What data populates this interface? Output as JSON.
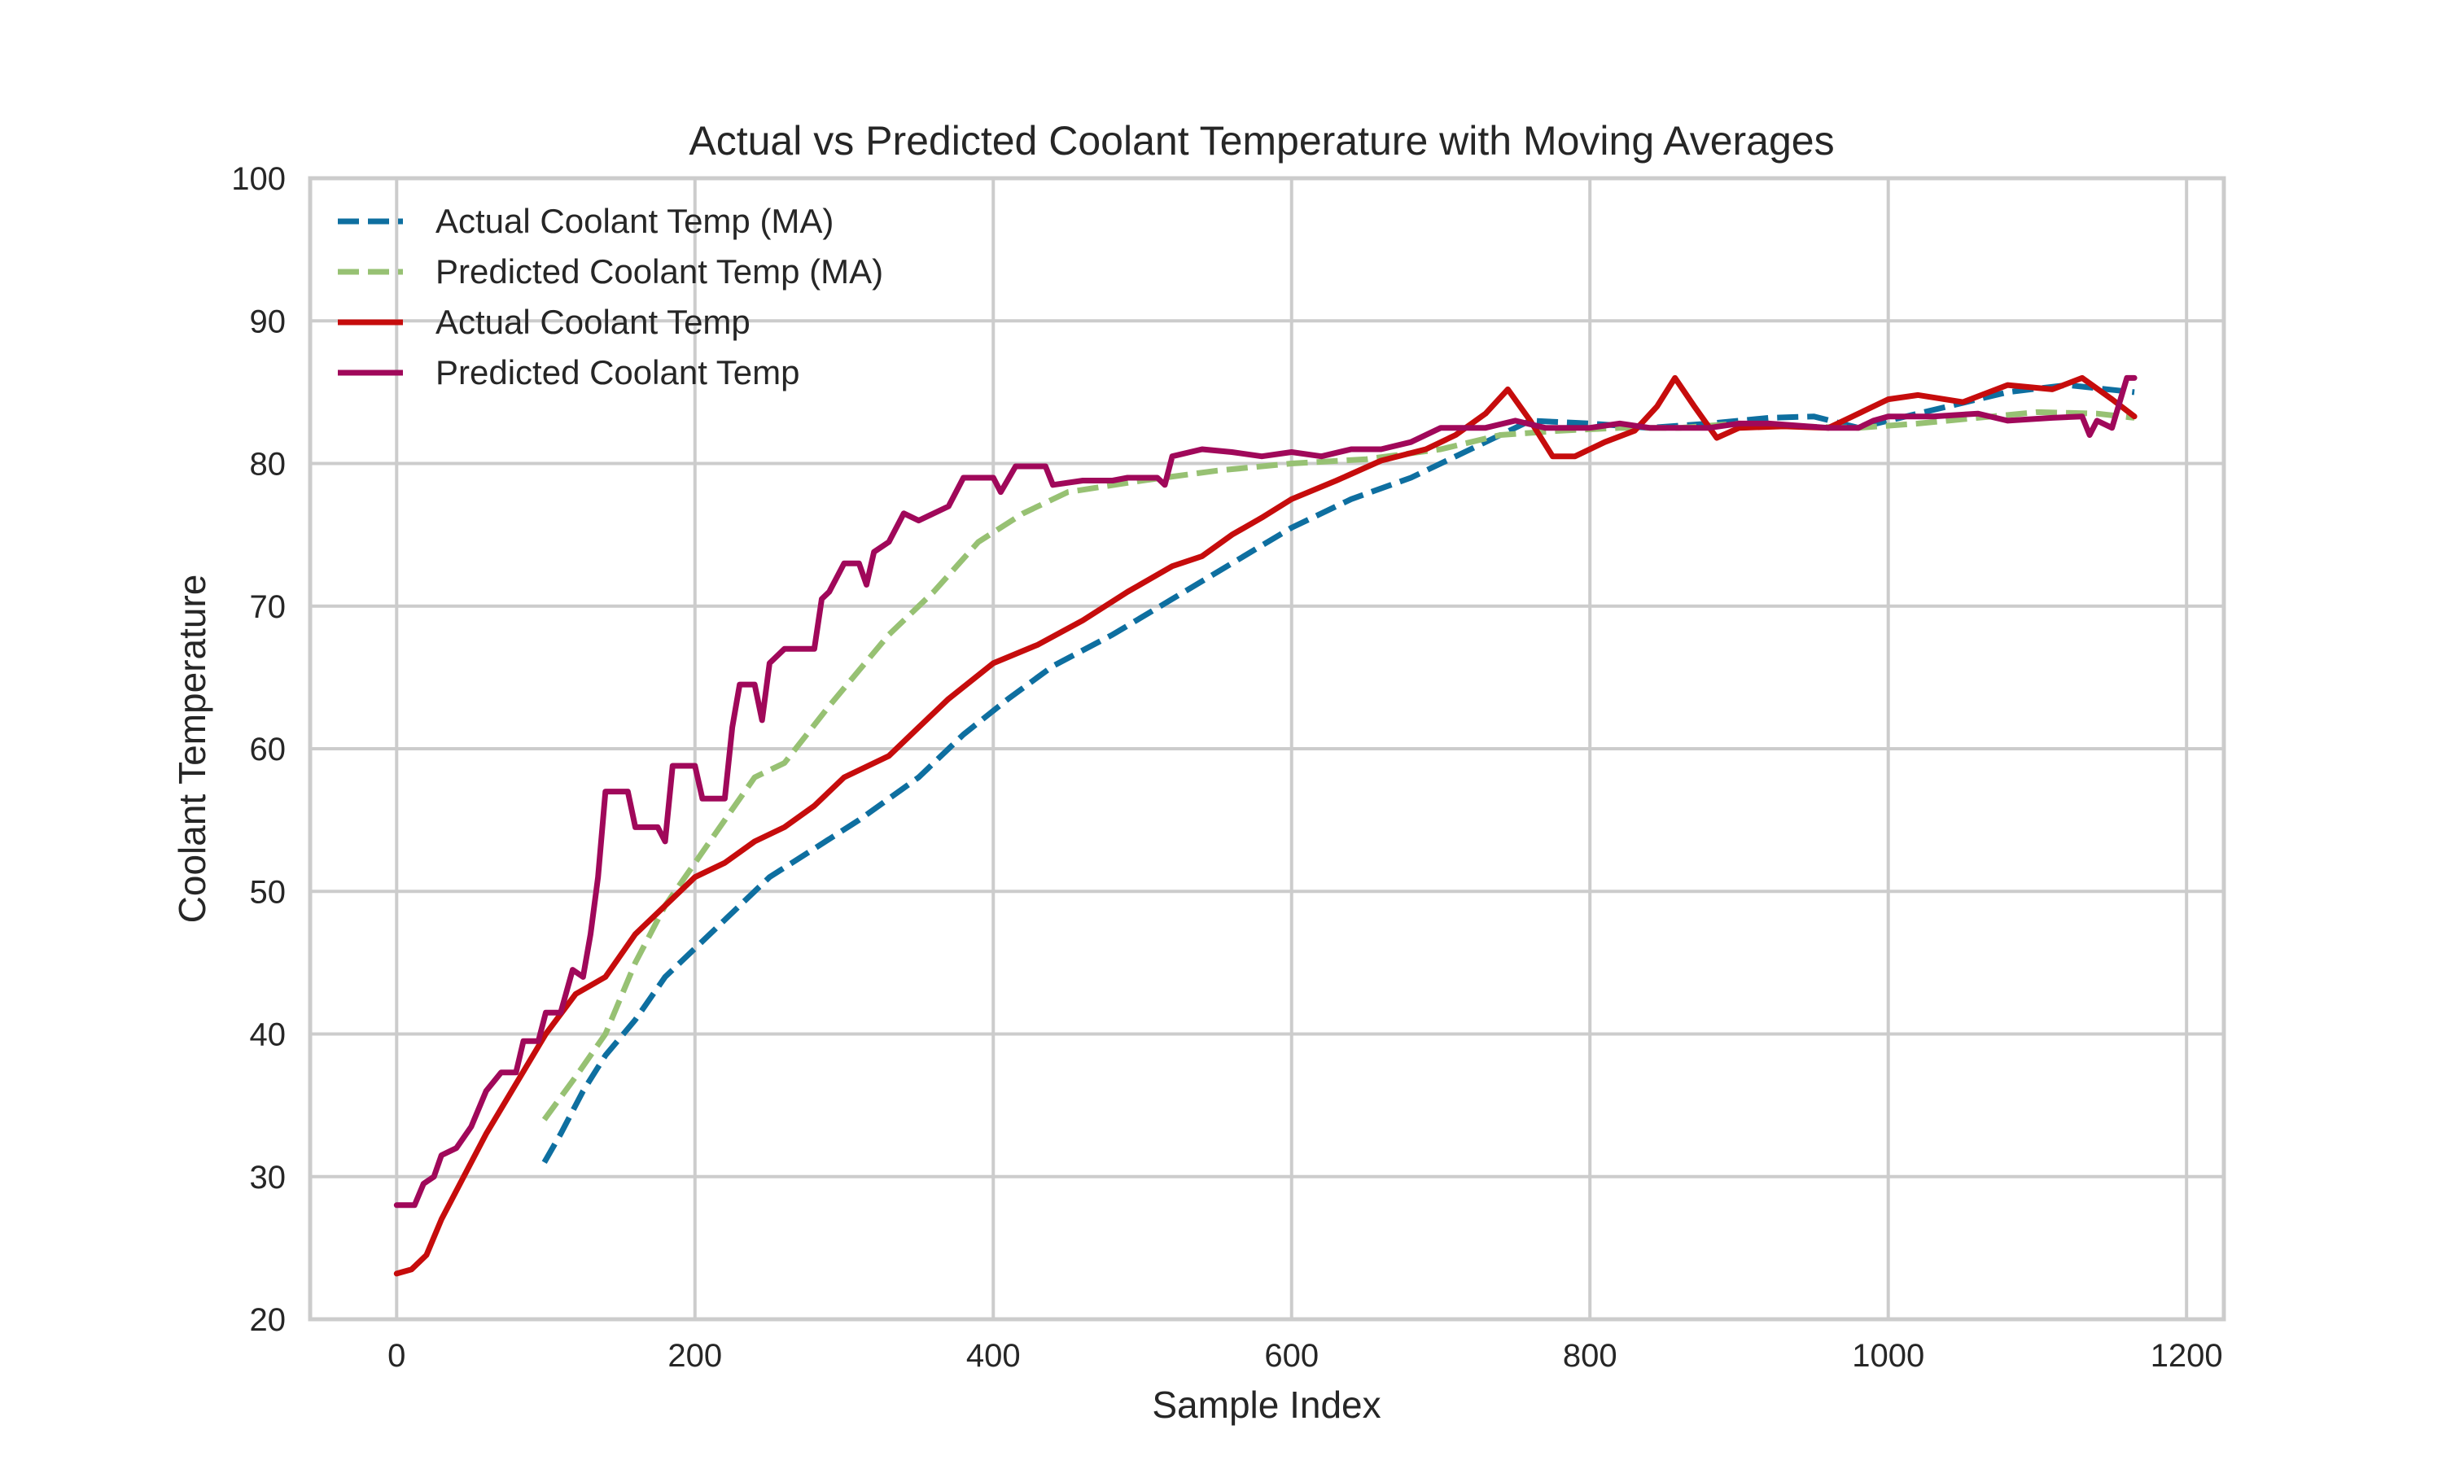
{
  "chart_data": {
    "type": "line",
    "title": "Actual vs Predicted Coolant Temperature with Moving Averages",
    "xlabel": "Sample Index",
    "ylabel": "Coolant Temperature",
    "xlim": [
      -58,
      1225
    ],
    "ylim": [
      20,
      100
    ],
    "xticks": [
      0,
      200,
      400,
      600,
      800,
      1000,
      1200
    ],
    "yticks": [
      20,
      30,
      40,
      50,
      60,
      70,
      80,
      90,
      100
    ],
    "grid": true,
    "legend_position": "top-left",
    "series": [
      {
        "name": "Actual Coolant Temp (MA)",
        "style": "dashed",
        "color": "#0e6fa0",
        "points": [
          [
            99,
            31
          ],
          [
            110,
            33
          ],
          [
            125,
            36
          ],
          [
            140,
            38.5
          ],
          [
            160,
            41
          ],
          [
            180,
            44
          ],
          [
            200,
            46
          ],
          [
            225,
            48.5
          ],
          [
            250,
            51
          ],
          [
            280,
            53
          ],
          [
            310,
            55
          ],
          [
            350,
            58
          ],
          [
            380,
            61
          ],
          [
            410,
            63.5
          ],
          [
            440,
            65.8
          ],
          [
            480,
            68
          ],
          [
            520,
            70.5
          ],
          [
            560,
            73
          ],
          [
            600,
            75.5
          ],
          [
            640,
            77.5
          ],
          [
            680,
            79
          ],
          [
            720,
            81
          ],
          [
            760,
            83
          ],
          [
            800,
            82.8
          ],
          [
            840,
            82.5
          ],
          [
            880,
            82.8
          ],
          [
            920,
            83.2
          ],
          [
            950,
            83.3
          ],
          [
            980,
            82.5
          ],
          [
            1000,
            83
          ],
          [
            1040,
            84
          ],
          [
            1080,
            85
          ],
          [
            1120,
            85.5
          ],
          [
            1165,
            85
          ]
        ]
      },
      {
        "name": "Predicted Coolant Temp (MA)",
        "style": "dashed",
        "color": "#97c173",
        "points": [
          [
            99,
            34
          ],
          [
            120,
            37
          ],
          [
            140,
            40
          ],
          [
            160,
            45
          ],
          [
            180,
            49
          ],
          [
            200,
            52
          ],
          [
            220,
            55
          ],
          [
            240,
            58
          ],
          [
            260,
            59
          ],
          [
            290,
            63
          ],
          [
            330,
            68
          ],
          [
            360,
            71
          ],
          [
            390,
            74.5
          ],
          [
            420,
            76.5
          ],
          [
            450,
            78
          ],
          [
            500,
            78.8
          ],
          [
            550,
            79.5
          ],
          [
            600,
            80
          ],
          [
            650,
            80.3
          ],
          [
            700,
            81
          ],
          [
            740,
            82
          ],
          [
            780,
            82.3
          ],
          [
            820,
            82.5
          ],
          [
            860,
            82.5
          ],
          [
            900,
            82.8
          ],
          [
            940,
            82.6
          ],
          [
            980,
            82.5
          ],
          [
            1020,
            82.8
          ],
          [
            1060,
            83.2
          ],
          [
            1100,
            83.6
          ],
          [
            1140,
            83.5
          ],
          [
            1165,
            83.2
          ]
        ]
      },
      {
        "name": "Actual Coolant Temp",
        "style": "solid",
        "color": "#c60c0c",
        "points": [
          [
            0,
            23.2
          ],
          [
            10,
            23.5
          ],
          [
            20,
            24.5
          ],
          [
            30,
            27
          ],
          [
            45,
            30
          ],
          [
            60,
            33
          ],
          [
            80,
            36.5
          ],
          [
            100,
            40
          ],
          [
            120,
            42.8
          ],
          [
            140,
            44
          ],
          [
            160,
            47
          ],
          [
            180,
            49
          ],
          [
            200,
            51
          ],
          [
            220,
            52
          ],
          [
            240,
            53.5
          ],
          [
            260,
            54.5
          ],
          [
            280,
            56
          ],
          [
            300,
            58
          ],
          [
            330,
            59.5
          ],
          [
            350,
            61.5
          ],
          [
            370,
            63.5
          ],
          [
            400,
            66
          ],
          [
            430,
            67.3
          ],
          [
            460,
            69
          ],
          [
            490,
            71
          ],
          [
            520,
            72.8
          ],
          [
            540,
            73.5
          ],
          [
            560,
            75
          ],
          [
            580,
            76.2
          ],
          [
            600,
            77.5
          ],
          [
            630,
            78.8
          ],
          [
            660,
            80.2
          ],
          [
            690,
            81
          ],
          [
            710,
            82
          ],
          [
            730,
            83.5
          ],
          [
            745,
            85.2
          ],
          [
            760,
            83
          ],
          [
            775,
            80.5
          ],
          [
            790,
            80.5
          ],
          [
            810,
            81.5
          ],
          [
            830,
            82.3
          ],
          [
            845,
            84
          ],
          [
            857,
            86
          ],
          [
            870,
            84
          ],
          [
            885,
            81.8
          ],
          [
            900,
            82.5
          ],
          [
            930,
            82.6
          ],
          [
            960,
            82.5
          ],
          [
            980,
            83.5
          ],
          [
            1000,
            84.5
          ],
          [
            1020,
            84.8
          ],
          [
            1050,
            84.3
          ],
          [
            1080,
            85.5
          ],
          [
            1110,
            85.2
          ],
          [
            1130,
            86
          ],
          [
            1150,
            84.5
          ],
          [
            1165,
            83.3
          ]
        ]
      },
      {
        "name": "Predicted Coolant Temp",
        "style": "solid",
        "color": "#a0085a",
        "points": [
          [
            0,
            28
          ],
          [
            12,
            28
          ],
          [
            18,
            29.5
          ],
          [
            25,
            30
          ],
          [
            30,
            31.5
          ],
          [
            40,
            32
          ],
          [
            50,
            33.5
          ],
          [
            60,
            36
          ],
          [
            70,
            37.3
          ],
          [
            80,
            37.3
          ],
          [
            85,
            39.5
          ],
          [
            95,
            39.5
          ],
          [
            100,
            41.5
          ],
          [
            110,
            41.5
          ],
          [
            118,
            44.5
          ],
          [
            125,
            44
          ],
          [
            130,
            47
          ],
          [
            135,
            51
          ],
          [
            140,
            57
          ],
          [
            155,
            57
          ],
          [
            160,
            54.5
          ],
          [
            175,
            54.5
          ],
          [
            180,
            53.5
          ],
          [
            185,
            58.8
          ],
          [
            200,
            58.8
          ],
          [
            205,
            56.5
          ],
          [
            220,
            56.5
          ],
          [
            225,
            61.5
          ],
          [
            230,
            64.5
          ],
          [
            240,
            64.5
          ],
          [
            245,
            62
          ],
          [
            250,
            66
          ],
          [
            260,
            67
          ],
          [
            280,
            67
          ],
          [
            285,
            70.5
          ],
          [
            290,
            71
          ],
          [
            300,
            73
          ],
          [
            310,
            73
          ],
          [
            315,
            71.5
          ],
          [
            320,
            73.8
          ],
          [
            330,
            74.5
          ],
          [
            340,
            76.5
          ],
          [
            350,
            76
          ],
          [
            370,
            77
          ],
          [
            380,
            79
          ],
          [
            400,
            79
          ],
          [
            405,
            78
          ],
          [
            415,
            79.8
          ],
          [
            435,
            79.8
          ],
          [
            440,
            78.5
          ],
          [
            460,
            78.8
          ],
          [
            480,
            78.8
          ],
          [
            490,
            79
          ],
          [
            510,
            79
          ],
          [
            515,
            78.5
          ],
          [
            520,
            80.5
          ],
          [
            540,
            81
          ],
          [
            560,
            80.8
          ],
          [
            580,
            80.5
          ],
          [
            600,
            80.8
          ],
          [
            620,
            80.5
          ],
          [
            640,
            81
          ],
          [
            660,
            81
          ],
          [
            680,
            81.5
          ],
          [
            700,
            82.5
          ],
          [
            730,
            82.5
          ],
          [
            750,
            83
          ],
          [
            770,
            82.5
          ],
          [
            800,
            82.5
          ],
          [
            820,
            82.8
          ],
          [
            840,
            82.5
          ],
          [
            860,
            82.5
          ],
          [
            880,
            82.5
          ],
          [
            900,
            82.8
          ],
          [
            920,
            82.8
          ],
          [
            960,
            82.5
          ],
          [
            980,
            82.5
          ],
          [
            990,
            83
          ],
          [
            1000,
            83.3
          ],
          [
            1030,
            83.3
          ],
          [
            1060,
            83.5
          ],
          [
            1080,
            83
          ],
          [
            1110,
            83.2
          ],
          [
            1130,
            83.3
          ],
          [
            1135,
            82
          ],
          [
            1140,
            83
          ],
          [
            1150,
            82.5
          ],
          [
            1160,
            86
          ],
          [
            1165,
            86
          ]
        ]
      }
    ]
  }
}
